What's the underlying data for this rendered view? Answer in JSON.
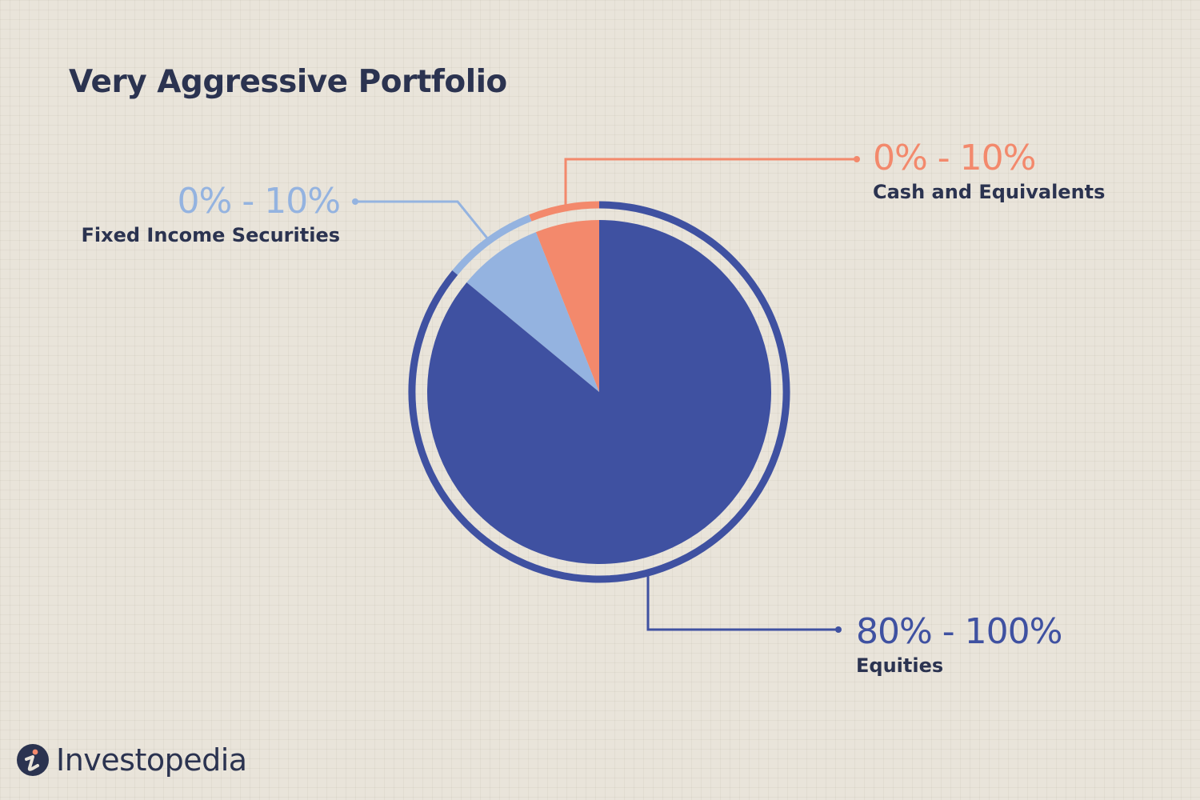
{
  "title": "Very Aggressive Portfolio",
  "brand": "Investopedia",
  "colors": {
    "equities": "#3f51a1",
    "fixed_income": "#94b3e0",
    "cash": "#f3896c",
    "text": "#2b3350",
    "background": "#e9e4da"
  },
  "chart_data": {
    "type": "pie",
    "title": "Very Aggressive Portfolio",
    "slices": [
      {
        "label": "Equities",
        "range_text": "80% - 100%",
        "value": 86,
        "color": "#3f51a1"
      },
      {
        "label": "Fixed Income Securities",
        "range_text": "0% - 10%",
        "value": 8,
        "color": "#94b3e0"
      },
      {
        "label": "Cash and Equivalents",
        "range_text": "0% - 10%",
        "value": 6,
        "color": "#f3896c"
      }
    ]
  }
}
